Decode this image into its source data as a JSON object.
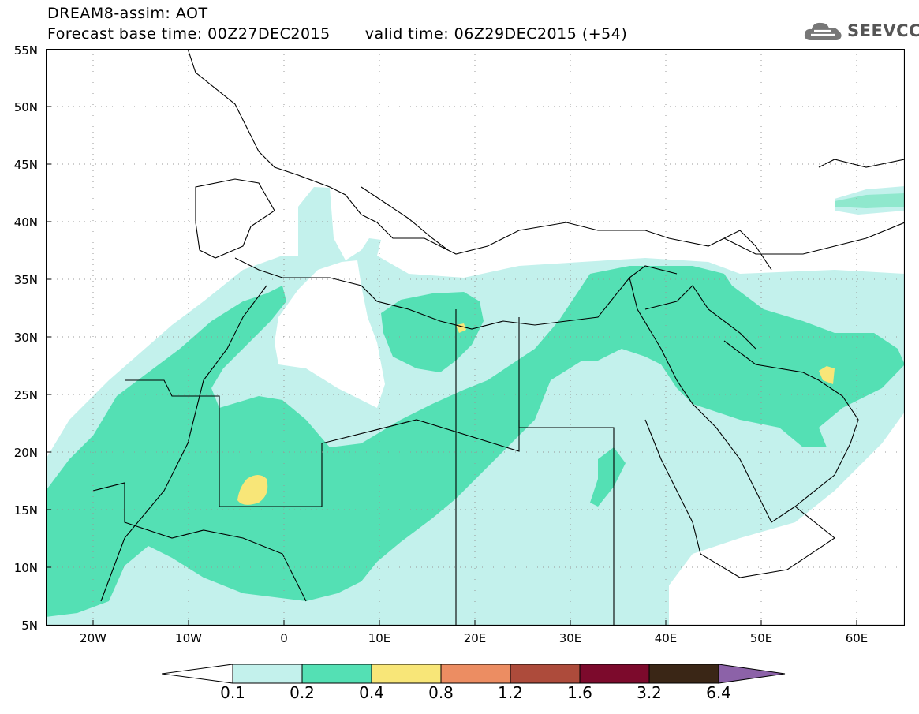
{
  "header": {
    "title": "DREAM8-assim: AOT",
    "forecast_base": "Forecast base time: 00Z27DEC2015",
    "valid_time": "valid time: 06Z29DEC2015 (+54)",
    "logo_text": "SEEVCCC"
  },
  "axes": {
    "lat_labels": [
      "55N",
      "50N",
      "45N",
      "40N",
      "35N",
      "30N",
      "25N",
      "20N",
      "15N",
      "10N",
      "5N"
    ],
    "lon_labels": [
      "20W",
      "10W",
      "0",
      "10E",
      "20E",
      "30E",
      "40E",
      "50E",
      "60E"
    ],
    "lat_range": [
      5,
      55
    ],
    "lon_range": [
      -25,
      65
    ],
    "grid": "dotted"
  },
  "legend": {
    "labels": [
      "0.1",
      "0.2",
      "0.4",
      "0.8",
      "1.2",
      "1.6",
      "3.2",
      "6.4"
    ],
    "colors": [
      "#ffffff",
      "#c3f1ec",
      "#54e0b4",
      "#f8e678",
      "#ec8d62",
      "#ad4b3b",
      "#7c0a2c",
      "#3a2616",
      "#8c62a8"
    ]
  },
  "colors": {
    "aot_01_02": "#c3f1ec",
    "aot_02_04": "#54e0b4",
    "aot_04_08": "#f8e678",
    "border": "#000000"
  }
}
